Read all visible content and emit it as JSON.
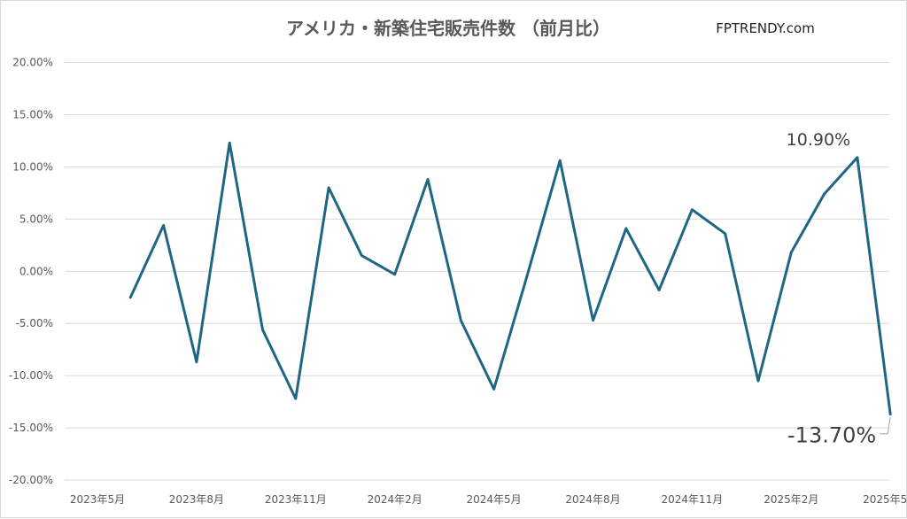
{
  "chart_data": {
    "type": "line",
    "title": "アメリカ・新築住宅販売件数 （前月比）",
    "brand": "FPTRENDY.com",
    "xlabel": "",
    "ylabel": "",
    "ylim": [
      -20,
      20
    ],
    "yticks": [
      20,
      15,
      10,
      5,
      0,
      -5,
      -10,
      -15,
      -20
    ],
    "ytick_labels": [
      "20.00%",
      "15.00%",
      "10.00%",
      "5.00%",
      "0.00%",
      "-5.00%",
      "-10.00%",
      "-15.00%",
      "-20.00%"
    ],
    "x_tick_labels": [
      "2023年5月",
      "2023年8月",
      "2023年11月",
      "2024年2月",
      "2024年5月",
      "2024年8月",
      "2024年11月",
      "2025年2月",
      "2025年5月"
    ],
    "grid": true,
    "legend": "none",
    "color": "#1f6685",
    "series": [
      {
        "x": [
          "2023-06",
          "2023-07",
          "2023-08",
          "2023-09",
          "2023-10",
          "2023-11",
          "2023-12",
          "2024-01",
          "2024-02",
          "2024-03",
          "2024-04",
          "2024-05",
          "2024-06",
          "2024-07",
          "2024-08",
          "2024-09",
          "2024-10",
          "2024-11",
          "2024-12",
          "2025-01",
          "2025-02",
          "2025-03",
          "2025-04",
          "2025-05"
        ],
        "values": [
          -2.5,
          4.4,
          -8.7,
          12.3,
          -5.6,
          -12.2,
          8.0,
          1.5,
          -0.3,
          8.8,
          -4.7,
          -11.3,
          -0.5,
          10.6,
          -4.7,
          4.1,
          -1.8,
          5.9,
          3.6,
          -10.5,
          1.8,
          7.4,
          10.9,
          -13.7
        ]
      }
    ],
    "annotations": [
      {
        "label": "10.90%",
        "x": "2025-04",
        "y": 10.9
      },
      {
        "label": "-13.70%",
        "x": "2025-05",
        "y": -13.7
      }
    ]
  }
}
